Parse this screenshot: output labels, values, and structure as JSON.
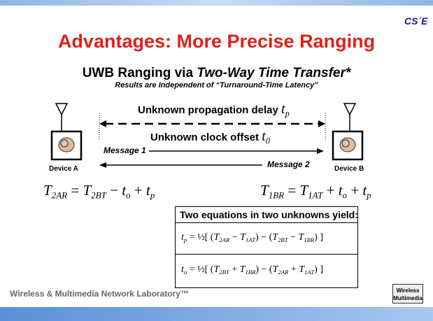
{
  "header": {
    "title": "Advantages: More Precise Ranging",
    "logo": "CS´E"
  },
  "subtitle": {
    "plain": "UWB Ranging via ",
    "italic": "Two-Way Time Transfer*"
  },
  "note": "Results are Independent of “Turnaround-Time Latency”",
  "diagram": {
    "delay_label": "Unknown propagation delay",
    "delay_symbol": {
      "base": "t",
      "sub": "p"
    },
    "offset_label": "Unknown clock offset",
    "offset_symbol": {
      "base": "t",
      "sub": "0"
    },
    "message1": "Message 1",
    "message2": "Message 2",
    "device_a": "Device A",
    "device_b": "Device B"
  },
  "equations": [
    [
      {
        "base": "T",
        "sub": "2AR"
      },
      " = ",
      {
        "base": "T",
        "sub": "2BT"
      },
      " − ",
      {
        "base": "t",
        "sub": "o"
      },
      " + ",
      {
        "base": "t",
        "sub": "p"
      }
    ],
    [
      {
        "base": "T",
        "sub": "1BR"
      },
      " = ",
      {
        "base": "T",
        "sub": "1AT"
      },
      " + ",
      {
        "base": "t",
        "sub": "o"
      },
      " + ",
      {
        "base": "t",
        "sub": "p"
      }
    ]
  ],
  "box": {
    "heading": "Two equations in two unknowns yield:",
    "equations": [
      [
        {
          "base": "t",
          "sub": "p"
        },
        " = ",
        "½",
        "[ (",
        {
          "base": "T",
          "sub": "2AR"
        },
        " − ",
        {
          "base": "T",
          "sub": "1AT"
        },
        ") − (",
        {
          "base": "T",
          "sub": "2BT"
        },
        " − ",
        {
          "base": "T",
          "sub": "1BR"
        },
        ") ]"
      ],
      [
        {
          "base": "t",
          "sub": "o"
        },
        " = ",
        "½",
        "[ (",
        {
          "base": "T",
          "sub": "2BT"
        },
        " + ",
        {
          "base": "T",
          "sub": "1BR"
        },
        ") − (",
        {
          "base": "T",
          "sub": "2AR"
        },
        " + ",
        {
          "base": "T",
          "sub": "1AT"
        },
        ") ]"
      ]
    ]
  },
  "footer": {
    "text": "Wireless & Multimedia Network Laboratory™",
    "logo": [
      "Wireless",
      "Multimedia"
    ]
  }
}
